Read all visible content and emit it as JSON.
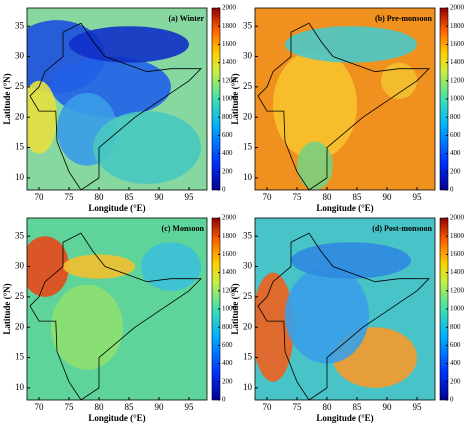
{
  "chart_data": [
    {
      "type": "heatmap",
      "title": "(a) Winter",
      "xlabel": "Longitude (°E)",
      "ylabel": "Latitude (°N)",
      "xlim": [
        68,
        98
      ],
      "ylim": [
        8,
        38
      ],
      "xticks": [
        70,
        75,
        80,
        85,
        90,
        95
      ],
      "yticks": [
        10,
        15,
        20,
        25,
        30,
        35
      ],
      "clim": [
        0,
        2000
      ],
      "cticks": [
        0,
        200,
        400,
        600,
        800,
        1000,
        1200,
        1400,
        1600,
        1800,
        2000
      ]
    },
    {
      "type": "heatmap",
      "title": "(b) Pre-monsoon",
      "xlabel": "Longitude (°E)",
      "ylabel": "Latitude (°N)",
      "xlim": [
        68,
        98
      ],
      "ylim": [
        8,
        38
      ],
      "xticks": [
        70,
        75,
        80,
        85,
        90,
        95
      ],
      "yticks": [
        10,
        15,
        20,
        25,
        30,
        35
      ],
      "clim": [
        0,
        2000
      ],
      "cticks": [
        0,
        200,
        400,
        600,
        800,
        1000,
        1200,
        1400,
        1600,
        1800,
        2000
      ]
    },
    {
      "type": "heatmap",
      "title": "(c) Monsoon",
      "xlabel": "Longitude (°E)",
      "ylabel": "Latitude (°N)",
      "xlim": [
        68,
        98
      ],
      "ylim": [
        8,
        38
      ],
      "xticks": [
        70,
        75,
        80,
        85,
        90,
        95
      ],
      "yticks": [
        10,
        15,
        20,
        25,
        30,
        35
      ],
      "clim": [
        0,
        2000
      ],
      "cticks": [
        0,
        200,
        400,
        600,
        800,
        1000,
        1200,
        1400,
        1600,
        1800,
        2000
      ]
    },
    {
      "type": "heatmap",
      "title": "(d) Post-monsoon",
      "xlabel": "Longitude (°E)",
      "ylabel": "Latitude (°N)",
      "xlim": [
        68,
        98
      ],
      "ylim": [
        8,
        38
      ],
      "xticks": [
        70,
        75,
        80,
        85,
        90,
        95
      ],
      "yticks": [
        10,
        15,
        20,
        25,
        30,
        35
      ],
      "clim": [
        0,
        2000
      ],
      "cticks": [
        0,
        200,
        400,
        600,
        800,
        1000,
        1200,
        1400,
        1600,
        1800,
        2000
      ]
    }
  ]
}
